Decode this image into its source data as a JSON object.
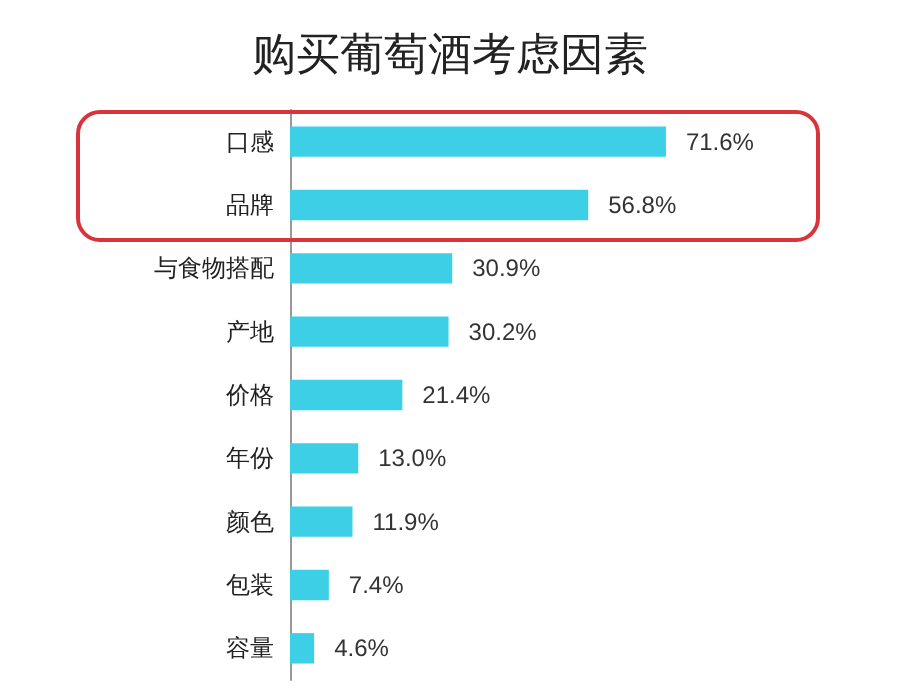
{
  "chart_data": {
    "type": "bar",
    "orientation": "horizontal",
    "title": "购买葡萄酒考虑因素",
    "categories": [
      "口感",
      "品牌",
      "与食物搭配",
      "产地",
      "价格",
      "年份",
      "颜色",
      "包装",
      "容量"
    ],
    "values": [
      71.6,
      56.8,
      30.9,
      30.2,
      21.4,
      13.0,
      11.9,
      7.4,
      4.6
    ],
    "value_labels": [
      "71.6%",
      "56.8%",
      "30.9%",
      "30.2%",
      "21.4%",
      "13.0%",
      "11.9%",
      "7.4%",
      "4.6%"
    ],
    "color": "#3ccfe6"
  }
}
